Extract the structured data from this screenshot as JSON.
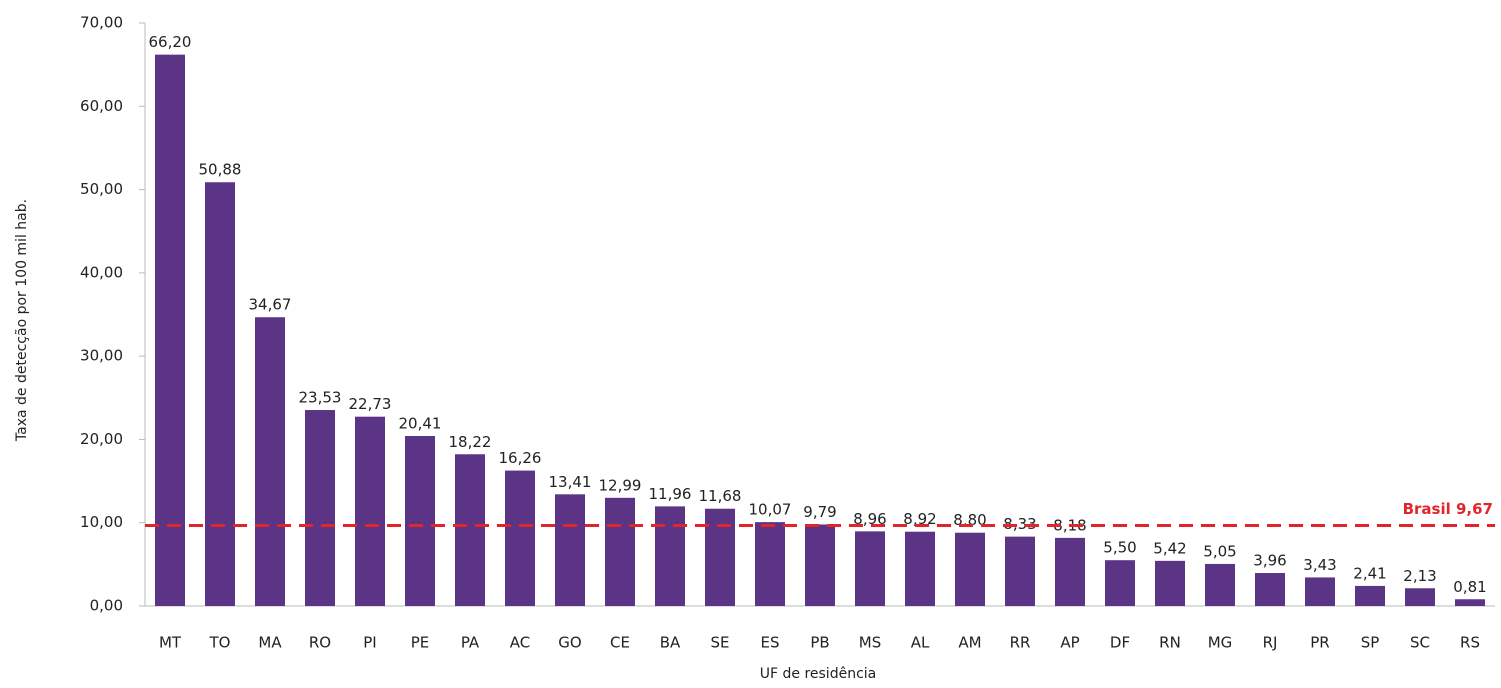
{
  "chart_data": {
    "type": "bar",
    "ylabel": "Taxa de detecção por 100 mil hab.",
    "xlabel": "UF de residência",
    "categories": [
      "MT",
      "TO",
      "MA",
      "RO",
      "PI",
      "PE",
      "PA",
      "AC",
      "GO",
      "CE",
      "BA",
      "SE",
      "ES",
      "PB",
      "MS",
      "AL",
      "AM",
      "RR",
      "AP",
      "DF",
      "RN",
      "MG",
      "RJ",
      "PR",
      "SP",
      "SC",
      "RS"
    ],
    "values": [
      66.2,
      50.88,
      34.67,
      23.53,
      22.73,
      20.41,
      18.22,
      16.26,
      13.41,
      12.99,
      11.96,
      11.68,
      10.07,
      9.79,
      8.96,
      8.92,
      8.8,
      8.33,
      8.18,
      5.5,
      5.42,
      5.05,
      3.96,
      3.43,
      2.41,
      2.13,
      0.81
    ],
    "value_labels": [
      "66,20",
      "50,88",
      "34,67",
      "23,53",
      "22,73",
      "20,41",
      "18,22",
      "16,26",
      "13,41",
      "12,99",
      "11,96",
      "11,68",
      "10,07",
      "9,79",
      "8,96",
      "8,92",
      "8,80",
      "8,33",
      "8,18",
      "5,50",
      "5,42",
      "5,05",
      "3,96",
      "3,43",
      "2,41",
      "2,13",
      "0,81"
    ],
    "color": "#5b3486",
    "ylim": [
      0,
      70
    ],
    "yticks": [
      {
        "value": 0,
        "label": "0,00"
      },
      {
        "value": 10,
        "label": "10,00"
      },
      {
        "value": 20,
        "label": "20,00"
      },
      {
        "value": 30,
        "label": "30,00"
      },
      {
        "value": 40,
        "label": "40,00"
      },
      {
        "value": 50,
        "label": "50,00"
      },
      {
        "value": 60,
        "label": "60,00"
      },
      {
        "value": 70,
        "label": "70,00"
      }
    ],
    "reference_line": {
      "value": 9.67,
      "label": "Brasil 9,67",
      "color": "#e0262a"
    },
    "grid": false
  }
}
